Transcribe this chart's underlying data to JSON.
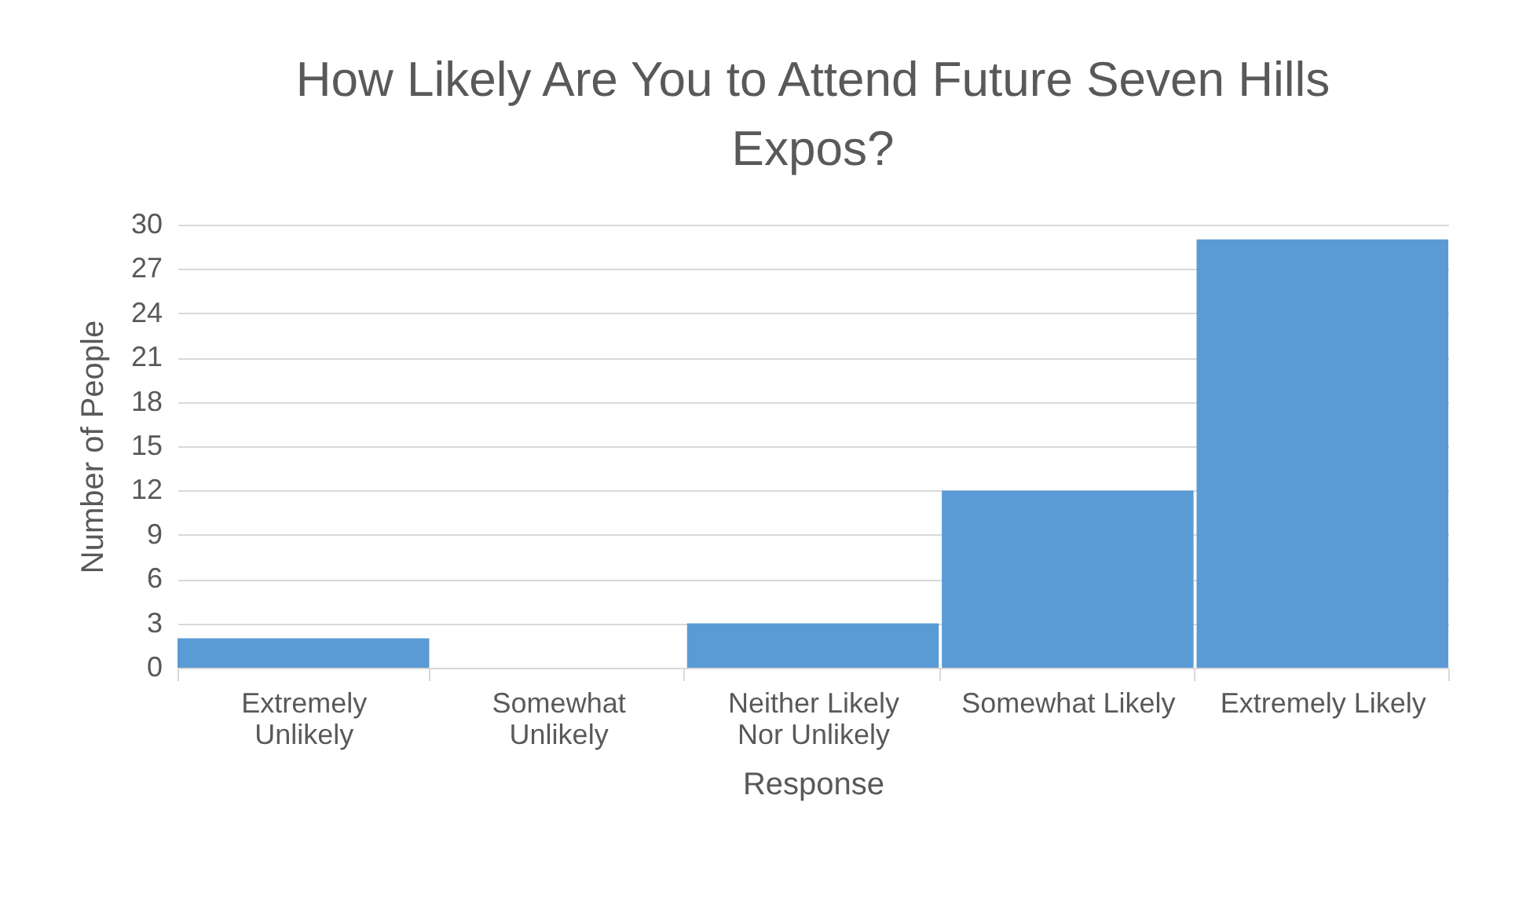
{
  "chart_data": {
    "type": "bar",
    "title": "How Likely Are You to Attend Future Seven Hills Expos?",
    "xlabel": "Response",
    "ylabel": "Number of People",
    "categories": [
      "Extremely Unlikely",
      "Somewhat Unlikely",
      "Neither Likely Nor Unlikely",
      "Somewhat Likely",
      "Extremely Likely"
    ],
    "values": [
      2,
      0,
      3,
      12,
      29
    ],
    "color": "#5b9bd5",
    "ylim": [
      0,
      30
    ],
    "yticks": [
      0,
      3,
      6,
      9,
      12,
      15,
      18,
      21,
      24,
      27,
      30
    ],
    "grid": "y"
  }
}
